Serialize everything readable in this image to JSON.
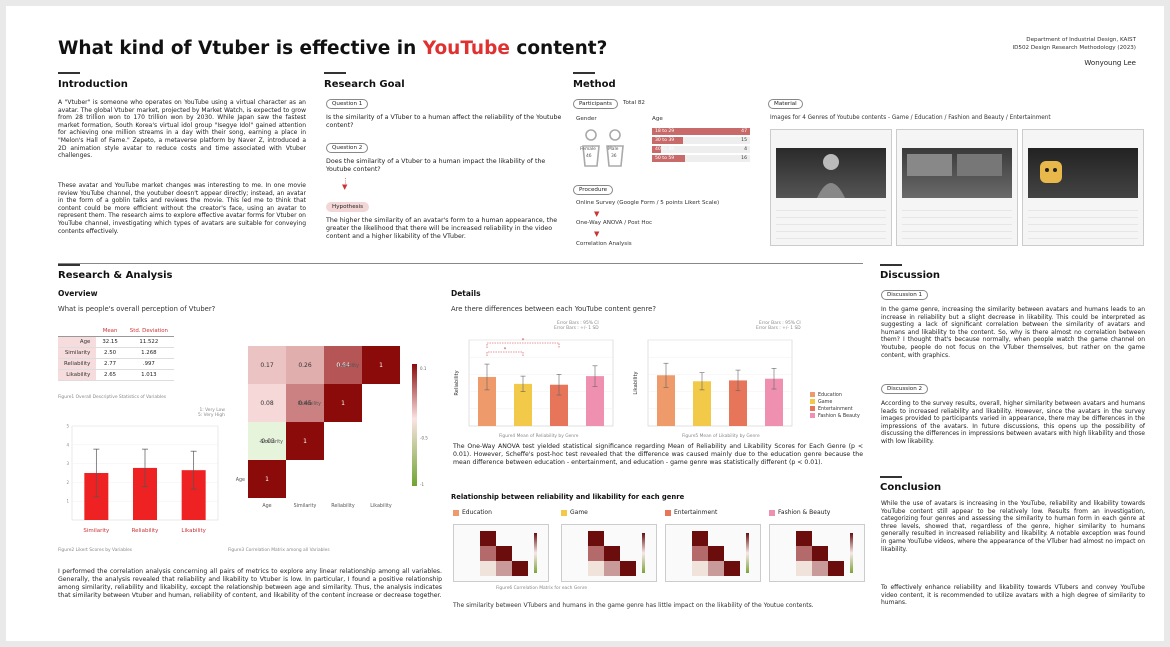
{
  "header": {
    "title_pre": "What kind of Vtuber is effective in ",
    "title_hl": "YouTube",
    "title_post": " content?",
    "dept1": "Department of Industrial Design, KAIST",
    "dept2": "ID502 Design Research Methodology (2023)",
    "author": "Wonyoung Lee"
  },
  "intro": {
    "heading": "Introduction",
    "p1": "A \"Vtuber\" is someone who operates on YouTube using a virtual character as an avatar. The global Vtuber market, projected by Market Watch, is expected to grow from 28 trillion won to 170 trillion won by 2030. While Japan saw the fastest market formation, South Korea's virtual idol group \"Isegye Idol\" gained attention for achieving one million streams in a day with their song, earning a place in \"Melon's Hall of Fame.\" Zepeto, a metaverse platform by Naver Z, introduced a 2D animation style avatar to reduce costs and time associated with Vtuber challenges.",
    "p2": "These avatar and YouTube market changes was interesting to me. In one movie review YouTube channel, the youtuber doesn't appear directly; instead, an avatar in the form of a goblin talks and reviews the movie. This led me to think that content could be more efficient without the creator's face, using an avatar to represent them. The research aims to explore effective avatar forms for Vtuber on YouTube channel, investigating which types of avatars are suitable for conveying contents effectively."
  },
  "goal": {
    "heading": "Research Goal",
    "q1_label": "Question 1",
    "q1": "Is the similarity of a VTuber to a human affect the reliability of the Youtube content?",
    "q2_label": "Question 2",
    "q2": "Does the similarity of a Vtuber to a human impact the likability of the Youtube content?",
    "hyp_label": "Hypothesis",
    "hyp": "The higher the similarity of an avatar's form to a human appearance, the greater the likelihood that there will be increased reliability in the video content and a higher likability of the VTuber."
  },
  "method": {
    "heading": "Method",
    "participants_label": "Participants",
    "total": "Total 82",
    "gender_label": "Gender",
    "female_label": "Female",
    "female_n": "46",
    "male_label": "Male",
    "male_n": "36",
    "age_label": "Age",
    "ages": [
      {
        "label": "18 to 29",
        "n": "47",
        "frac": 1.0
      },
      {
        "label": "30 to 39",
        "n": "15",
        "frac": 0.32
      },
      {
        "label": "40 to 49",
        "n": "4",
        "frac": 0.09
      },
      {
        "label": "50 to 59",
        "n": "16",
        "frac": 0.34
      }
    ],
    "procedure_label": "Procedure",
    "steps": [
      "Online Survey (Google Form / 5 points Likert Scale)",
      "One-Way ANOVA / Post Hoc",
      "Correlation Analysis"
    ],
    "material_label": "Material",
    "material_desc": "Images for 4 Genres of Youtube contents - Game / Education / Fashion and Beauty / Entertainment"
  },
  "analysis": {
    "heading": "Research & Analysis",
    "overview": "Overview",
    "overview_q": "What is people's overall perception of Vtuber?",
    "table": {
      "headers": [
        "Mean",
        "Std. Deviation"
      ],
      "rows": [
        {
          "label": "Age",
          "mean": "32.15",
          "sd": "11.522"
        },
        {
          "label": "Similarity",
          "mean": "2.50",
          "sd": "1.268"
        },
        {
          "label": "Reliability",
          "mean": "2.77",
          "sd": ".997"
        },
        {
          "label": "Likability",
          "mean": "2.65",
          "sd": "1.013"
        }
      ]
    },
    "fig1": "Figure1  Overall Descriptive Statistics of Variables",
    "fig2": "Figure2  Likert Scores by Variables",
    "fig3": "Figure3  Correlation Matrix among all Variables",
    "likert_legend": [
      "1: Very Low",
      "5: Very High"
    ],
    "summary": "I performed the correlation analysis concerning all pairs of metrics to explore any linear relationship among all variables. Generally, the analysis revealed that reliability and likability to Vtuber is low. In particular, I found a positive relationship among similarity, reliability and likability, except the relationship between age and similarity. Thus, the analysis indicates that similarity between Vtuber and human, reliability of content, and likability of the content increase or decrease together."
  },
  "details": {
    "heading": "Details",
    "q": "Are there differences between each YouTube content genre?",
    "fig4": "Figure4  Mean of Reliability by Genre",
    "fig5": "Figure5  Mean of Likability by Genre",
    "errbar_note1": "Error Bars : 95% CI",
    "errbar_note2": "Error Bars : +/- 1 SD",
    "anova": "The One-Way ANOVA test yielded statistical significance regarding Mean of Reliability and Likability Scores for Each Genre (p < 0.01). However, Scheffe's post-hoc test revealed that the difference was caused mainly due to the education genre because the mean difference between education - entertainment, and education - game genre was statistically different (p < 0.01).",
    "rel_heading": "Relationship between reliability and likability for each genre",
    "genres": [
      "Education",
      "Game",
      "Entertainment",
      "Fashion & Beauty"
    ],
    "fig6": "Figure6  Correlation Matrix for each Genre",
    "note": "The similarity between VTubers and humans in the game genre has little impact on the likability of the Youtue contents."
  },
  "discussion": {
    "heading": "Discussion",
    "d1_label": "Discussion 1",
    "d1": "In the game genre, increasing the similarity between avatars and humans leads to an increase in reliability but a slight decrease in likability. This could be interpreted as suggesting a lack of significant correlation between the similarity of avatars and humans and likability to the content. So, why is there almost no correlation between them? I thought that's because normally, when people watch the game channel on Youtube, people do not focus on the VTuber themselves, but rather on the game content, with graphics.",
    "d2_label": "Discussion 2",
    "d2": "According to the survey results, overall, higher similarity between avatars and humans leads to increased reliability and likability. However, since the avatars in the survey images provided to participants varied in appearance, there may be differences in the impressions of the avatars. In future discussions, this opens up the possibility of discussing the differences in impressions between avatars with high likability and those with low likability."
  },
  "conclusion": {
    "heading": "Conclusion",
    "p1": "While the use of avatars is increasing in the YouTube, reliability and likability towards YouTube content still appear to be relatively low. Results from an investigation, categorizing four genres and assessing the similarity to human form in each genre at three levels, showed that, regardless of the genre, higher similarity to humans generally resulted in increased reliability and likability. A notable exception was found in game YouTube videos, where the appearance of the VTuber had almost no impact on likability.",
    "p2": "To effectively enhance reliability and likability towards VTubers and convey YouTube video content, it is recommended to utilize avatars with a high degree of similarity to humans."
  },
  "chart_data": [
    {
      "type": "bar",
      "categories": [
        "Similarity",
        "Reliability",
        "Likability"
      ],
      "values": [
        2.5,
        2.77,
        2.65
      ],
      "error": [
        1.27,
        1.0,
        1.01
      ],
      "ylim": [
        0,
        5
      ],
      "color": "#ee2222"
    },
    {
      "type": "heatmap",
      "labels": [
        "Age",
        "Similarity",
        "Reliability",
        "Likability"
      ],
      "cells": [
        {
          "row": "Similarity",
          "col": "Age",
          "value": -0.03
        },
        {
          "row": "Reliability",
          "col": "Age",
          "value": 0.08
        },
        {
          "row": "Reliability",
          "col": "Similarity",
          "value": 0.45
        },
        {
          "row": "Likability",
          "col": "Age",
          "value": 0.17
        },
        {
          "row": "Likability",
          "col": "Similarity",
          "value": 0.26
        },
        {
          "row": "Likability",
          "col": "Reliability",
          "value": 0.64
        }
      ],
      "colorbar_ticks": [
        "0.1",
        "-0.5",
        "-1"
      ]
    },
    {
      "type": "bar",
      "ylabel": "Reliability",
      "categories": [
        "Education",
        "Game",
        "Entertainment",
        "Fashion & Beauty"
      ],
      "values": [
        2.85,
        2.45,
        2.4,
        2.9
      ],
      "error": [
        0.75,
        0.45,
        0.6,
        0.6
      ],
      "ylim": [
        0,
        5
      ]
    },
    {
      "type": "bar",
      "ylabel": "Likability",
      "categories": [
        "Education",
        "Game",
        "Entertainment",
        "Fashion & Beauty"
      ],
      "values": [
        2.95,
        2.6,
        2.65,
        2.75
      ],
      "error": [
        0.7,
        0.5,
        0.6,
        0.6
      ],
      "ylim": [
        0,
        5
      ]
    }
  ],
  "colors": {
    "accent": "#e03131",
    "edu": "#ef9a6a",
    "game": "#f3c94a",
    "ent": "#e7755a",
    "fashion": "#ef90b0"
  }
}
